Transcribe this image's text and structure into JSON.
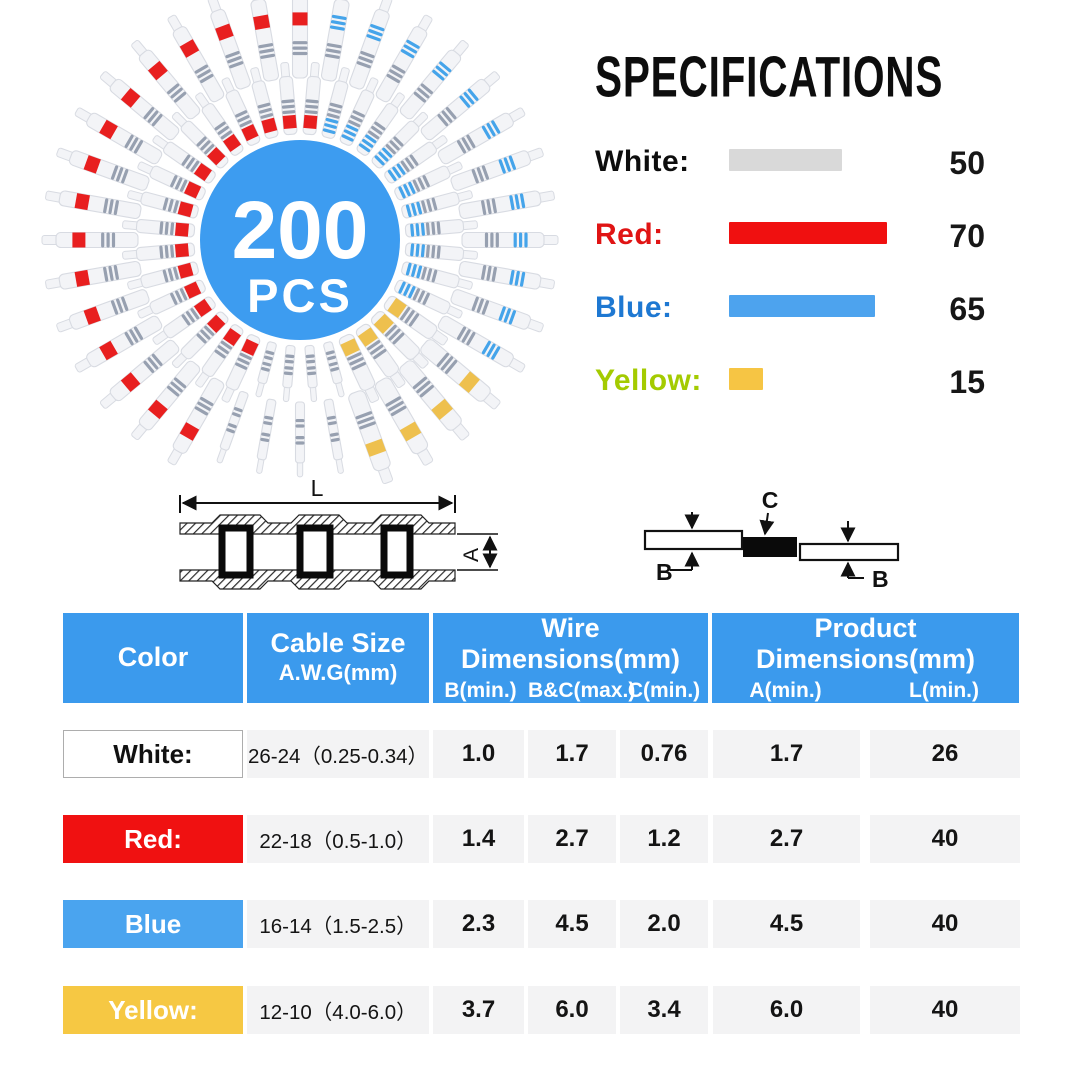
{
  "wheel": {
    "count_label": "200",
    "unit_label": "PCS",
    "circle_color": "#3d9cf0",
    "palette": {
      "body": "#f3f4f7",
      "body_stroke": "#d8dbe2",
      "silver": "#97a0b0",
      "red": "#e81f1f",
      "blue": "#45a4ea",
      "yellow": "#eec04e",
      "white": "#eef0f3"
    },
    "sectors": [
      {
        "from": 8,
        "to": 122,
        "color": "blue"
      },
      {
        "from": 122,
        "to": 163,
        "color": "yellow"
      },
      {
        "from": 163,
        "to": 205,
        "color": "white"
      },
      {
        "from": 205,
        "to": 360,
        "color": "red"
      },
      {
        "from": 0,
        "to": 8,
        "color": "red"
      }
    ]
  },
  "specifications": {
    "title": "SPECIFICATIONS",
    "items": [
      {
        "label": "White:",
        "label_color": "#0d0d0d",
        "bar_color": "#d9d9d9",
        "count": 50
      },
      {
        "label": "Red:",
        "label_color": "#e01414",
        "bar_color": "#f01010",
        "count": 70
      },
      {
        "label": "Blue:",
        "label_color": "#1e78d2",
        "bar_color": "#4da3ee",
        "count": 65
      },
      {
        "label": "Yellow:",
        "label_color": "#a4cb01",
        "bar_color": "#f6c544",
        "count": 15
      }
    ]
  },
  "chart_data": {
    "type": "bar",
    "orientation": "horizontal",
    "title": "SPECIFICATIONS",
    "categories": [
      "White",
      "Red",
      "Blue",
      "Yellow"
    ],
    "values": [
      50,
      70,
      65,
      15
    ],
    "bar_colors": [
      "#d9d9d9",
      "#f01010",
      "#4da3ee",
      "#f6c544"
    ],
    "xlabel": "",
    "ylabel": "",
    "legend": false,
    "grid": false,
    "total_label": "200 PCS"
  },
  "diagrams": {
    "l_label": "L",
    "a_label": "A",
    "c_label": "C",
    "b_label_left": "B",
    "b_label_right": "B"
  },
  "table": {
    "headers": {
      "color": "Color",
      "cable_line1": "Cable Size",
      "cable_line2": "A.W.G(mm)",
      "wire_title": "Wire Dimensions(mm)",
      "wire_sub": [
        "B(min.)",
        "B&C(max.)",
        "C(min.)"
      ],
      "product_title": "Product Dimensions(mm)",
      "product_sub": [
        "A(min.)",
        "L(min.)"
      ]
    },
    "header_bg": "#3b9aed",
    "rows": [
      {
        "color_label": "White:",
        "swatch_bg": "#ffffff",
        "swatch_text": "#111111",
        "swatch_border": "1px solid #adadad",
        "cable": "26-24（0.25-0.34）",
        "b_min": "1.0",
        "bc_max": "1.7",
        "c_min": "0.76",
        "a_min": "1.7",
        "l_min": "26"
      },
      {
        "color_label": "Red:",
        "swatch_bg": "#f01111",
        "swatch_text": "#ffffff",
        "swatch_border": "none",
        "cable": "22-18（0.5-1.0）",
        "b_min": "1.4",
        "bc_max": "2.7",
        "c_min": "1.2",
        "a_min": "2.7",
        "l_min": "40"
      },
      {
        "color_label": "Blue",
        "swatch_bg": "#4aa4ef",
        "swatch_text": "#ffffff",
        "swatch_border": "none",
        "cable": "16-14（1.5-2.5）",
        "b_min": "2.3",
        "bc_max": "4.5",
        "c_min": "2.0",
        "a_min": "4.5",
        "l_min": "40"
      },
      {
        "color_label": "Yellow:",
        "swatch_bg": "#f6c843",
        "swatch_text": "#ffffff",
        "swatch_border": "none",
        "cable": "12-10（4.0-6.0）",
        "b_min": "3.7",
        "bc_max": "6.0",
        "c_min": "3.4",
        "a_min": "6.0",
        "l_min": "40"
      }
    ]
  }
}
